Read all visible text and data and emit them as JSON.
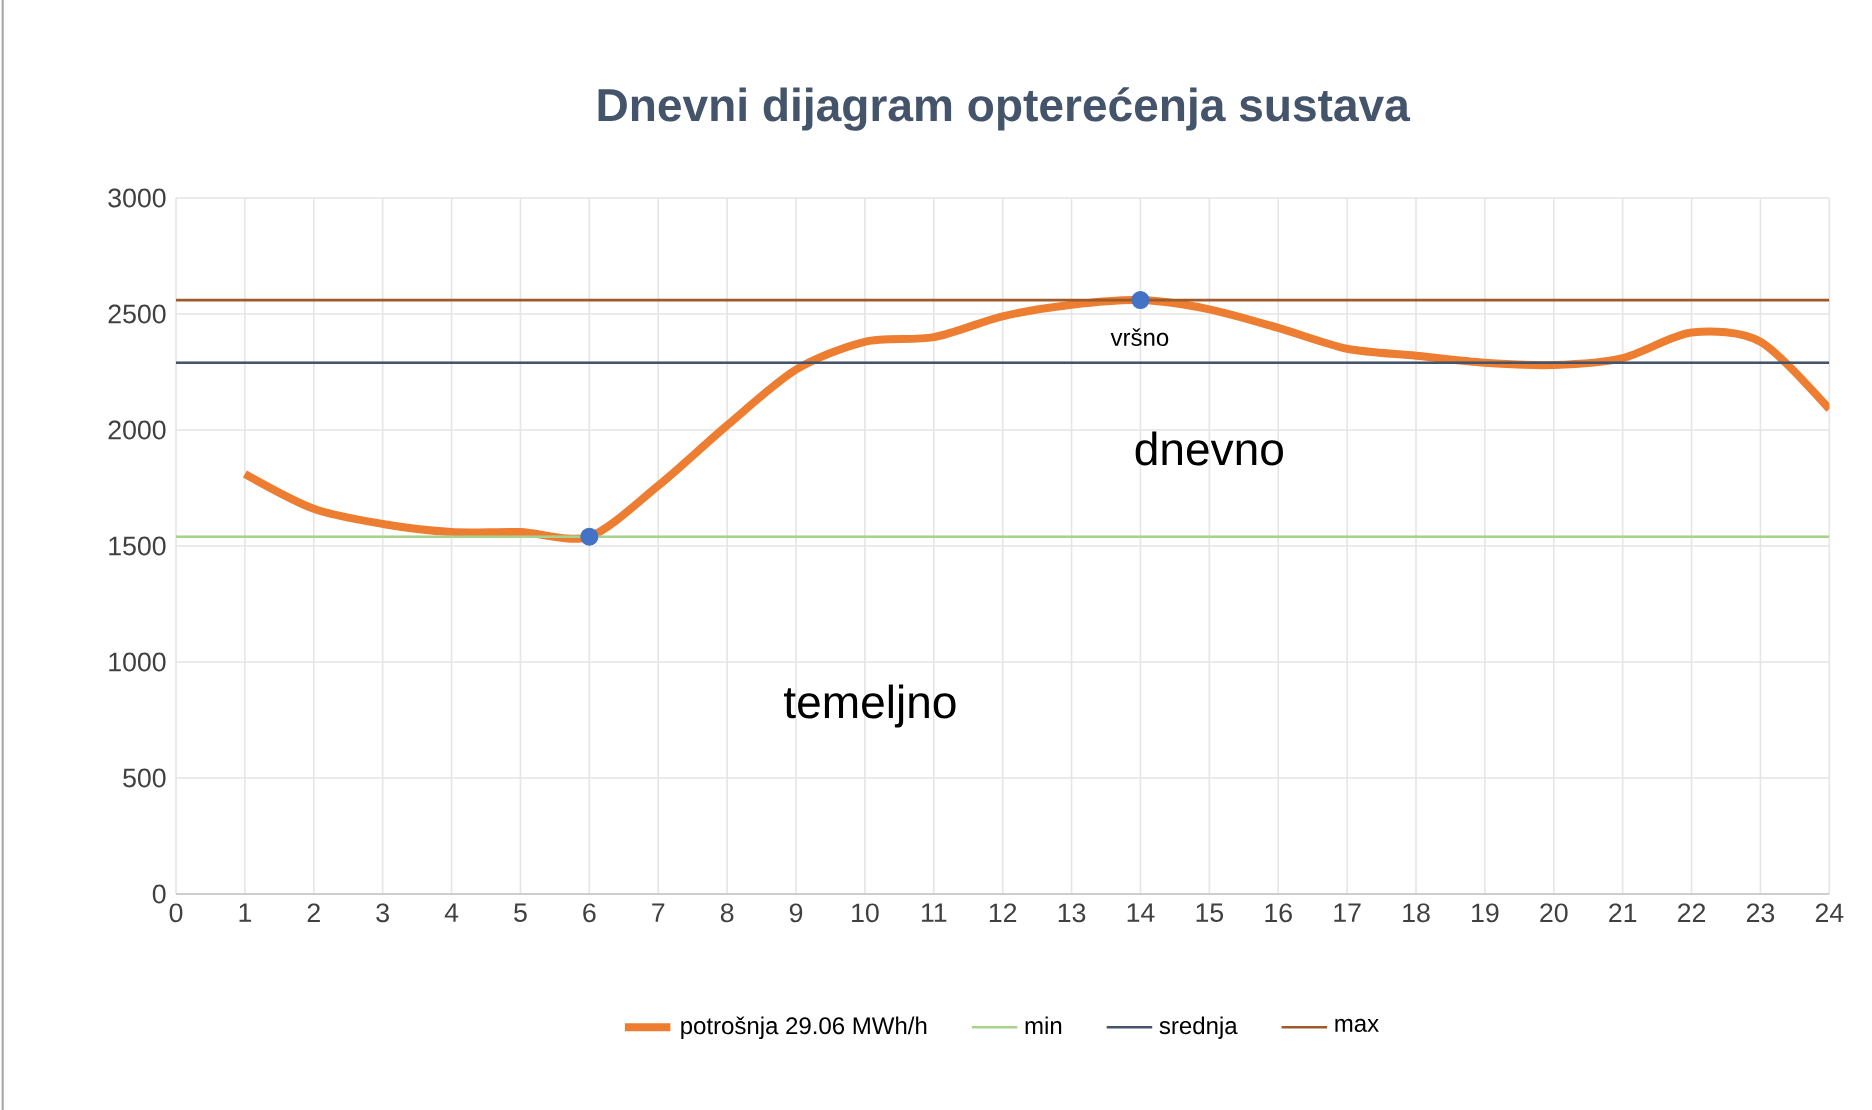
{
  "chart_data": {
    "type": "line",
    "title": "Dnevni dijagram opterećenja sustava",
    "x": [
      1,
      2,
      3,
      4,
      5,
      6,
      7,
      8,
      9,
      10,
      11,
      12,
      13,
      14,
      15,
      16,
      17,
      18,
      19,
      20,
      21,
      22,
      23,
      24
    ],
    "series": [
      {
        "name": "potrošnja 29.06 MWh/h",
        "color": "#ed7d31",
        "values": [
          1810,
          1660,
          1595,
          1560,
          1560,
          1540,
          1760,
          2020,
          2260,
          2380,
          2400,
          2490,
          2540,
          2560,
          2520,
          2440,
          2350,
          2320,
          2290,
          2280,
          2310,
          2420,
          2380,
          2090
        ]
      },
      {
        "type": "scatter",
        "color": "#4472c4",
        "x": [
          6,
          14
        ],
        "values": [
          1540,
          2560
        ]
      }
    ],
    "ref_lines": [
      {
        "axis": "y",
        "value": 1540,
        "label": "min",
        "color": "#a9d18e"
      },
      {
        "axis": "y",
        "value": 2290,
        "label": "srednja",
        "color": "#44546a"
      },
      {
        "axis": "y",
        "value": 2560,
        "label": "max",
        "color": "#9e5a2a"
      }
    ],
    "annotations": [
      "vršno",
      "dnevno",
      "temeljno"
    ],
    "xlim": [
      0,
      24
    ],
    "xticks": [
      0,
      1,
      2,
      3,
      4,
      5,
      6,
      7,
      8,
      9,
      10,
      11,
      12,
      13,
      14,
      15,
      16,
      17,
      18,
      19,
      20,
      21,
      22,
      23,
      24
    ],
    "ylim": [
      0,
      3000
    ],
    "yticks": [
      0,
      500,
      1000,
      1500,
      2000,
      2500,
      3000
    ],
    "grid": true,
    "legend": "bottom"
  }
}
